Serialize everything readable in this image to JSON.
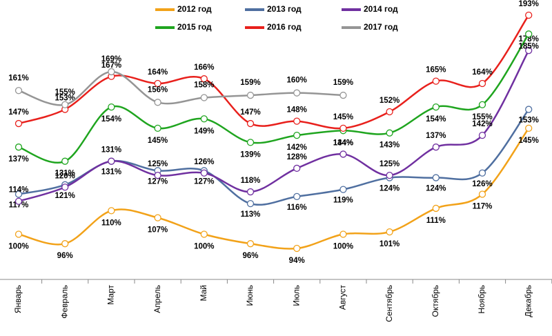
{
  "chart_data": {
    "type": "line",
    "categories": [
      "Январь",
      "Февраль",
      "Март",
      "Апрель",
      "Май",
      "Июнь",
      "Июль",
      "Август",
      "Сентябрь",
      "Октябрь",
      "Ноябрь",
      "Декабрь"
    ],
    "series": [
      {
        "name": "2012 год",
        "color": "#f2a219",
        "values": [
          100,
          96,
          110,
          107,
          100,
          96,
          94,
          100,
          101,
          111,
          117,
          145
        ],
        "value_labels": [
          "100%",
          "96%",
          "110%",
          "107%",
          "100%",
          "96%",
          "94%",
          "100%",
          "101%",
          "111%",
          "117%",
          "145%"
        ]
      },
      {
        "name": "2013 год",
        "color": "#4f6fa0",
        "values": [
          117,
          121,
          131,
          127,
          127,
          113,
          116,
          119,
          124,
          124,
          126,
          153
        ],
        "value_labels": [
          "117%",
          "121%",
          "131%",
          "127%",
          "127%",
          "113%",
          "116%",
          "119%",
          "124%",
          "124%",
          "126%",
          "153%"
        ]
      },
      {
        "name": "2014 год",
        "color": "#7030a0",
        "values": [
          114,
          120,
          131,
          125,
          126,
          118,
          128,
          134,
          125,
          137,
          142,
          178
        ],
        "value_labels": [
          "114%",
          "120%",
          "131%",
          "125%",
          "126%",
          "118%",
          "128%",
          "134%",
          "125%",
          "137%",
          "142%",
          "178%"
        ]
      },
      {
        "name": "2015 год",
        "color": "#1fa51f",
        "values": [
          137,
          131,
          154,
          145,
          149,
          139,
          142,
          144,
          143,
          154,
          155,
          185
        ],
        "value_labels": [
          "137%",
          "131%",
          "154%",
          "145%",
          "149%",
          "139%",
          "142%",
          "144%",
          "143%",
          "154%",
          "155%",
          "185%"
        ]
      },
      {
        "name": "2016 год",
        "color": "#e8201c",
        "values": [
          147,
          153,
          167,
          164,
          166,
          147,
          148,
          145,
          152,
          165,
          164,
          193
        ],
        "value_labels": [
          "147%",
          "153%",
          "167%",
          "164%",
          "166%",
          "147%",
          "148%",
          "145%",
          "152%",
          "165%",
          "164%",
          "193%"
        ]
      },
      {
        "name": "2017 год",
        "color": "#959595",
        "values": [
          161,
          155,
          169,
          156,
          158,
          159,
          160,
          159,
          null,
          null,
          null,
          null
        ],
        "value_labels": [
          "161%",
          "155%",
          "169%",
          "156%",
          "158%",
          "159%",
          "160%",
          "159%",
          null,
          null,
          null,
          null
        ]
      }
    ]
  }
}
